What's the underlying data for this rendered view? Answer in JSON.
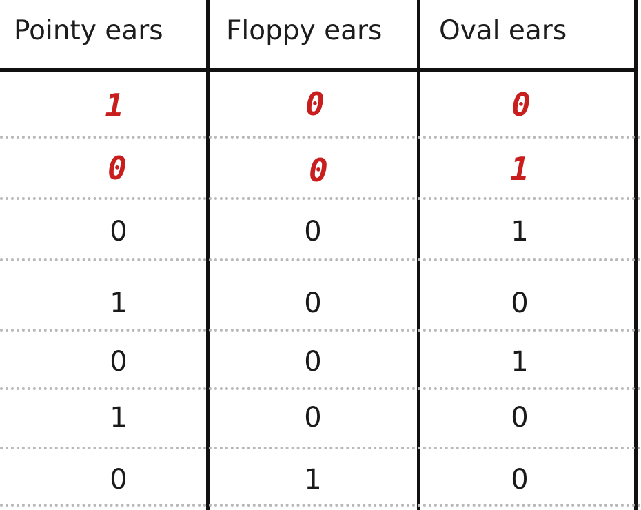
{
  "table": {
    "headers": [
      "Pointy ears",
      "Floppy ears",
      "Oval ears"
    ],
    "rows": [
      [
        "1",
        "0",
        "0"
      ],
      [
        "0",
        "0",
        "1"
      ],
      [
        "0",
        "0",
        "1"
      ],
      [
        "1",
        "0",
        "0"
      ],
      [
        "0",
        "0",
        "1"
      ],
      [
        "1",
        "0",
        "0"
      ],
      [
        "0",
        "1",
        "0"
      ]
    ],
    "handwritten_rows": [
      0,
      1
    ],
    "handwritten_color": "#c81e1e",
    "rule_color": "#111111",
    "separator_color": "#b9b9b9"
  }
}
